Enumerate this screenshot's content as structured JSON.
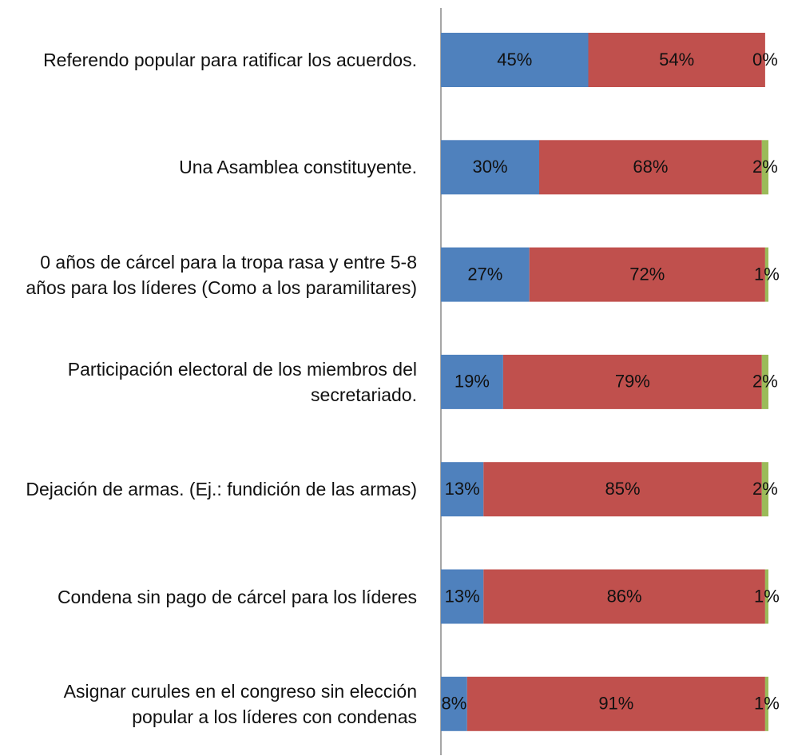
{
  "chart_data": {
    "type": "stacked-barh",
    "categories": [
      "Referendo popular para ratificar los acuerdos.",
      "Una Asamblea constituyente.",
      "0 años de cárcel para la tropa rasa y entre 5-8 años para los líderes (Como a los paramilitares)",
      "Participación electoral de los miembros del secretariado.",
      "Dejación de armas. (Ej.: fundición de las armas)",
      "Condena sin pago de cárcel para los líderes",
      "Asignar curules en el congreso sin elección popular a los líderes con condenas"
    ],
    "xlim": [
      0,
      100
    ],
    "series": [
      {
        "color": "#4f81bd",
        "values": [
          45,
          30,
          27,
          19,
          13,
          13,
          8
        ],
        "value_labels": [
          "45%",
          "30%",
          "27%",
          "19%",
          "13%",
          "13%",
          "8%"
        ]
      },
      {
        "color": "#c0504d",
        "values": [
          54,
          68,
          72,
          79,
          85,
          86,
          91
        ],
        "value_labels": [
          "54%",
          "68%",
          "72%",
          "79%",
          "85%",
          "86%",
          "91%"
        ]
      },
      {
        "color": "#9bbb59",
        "values": [
          0,
          2,
          1,
          2,
          2,
          1,
          1
        ],
        "value_labels": [
          "0%",
          "2%",
          "1%",
          "2%",
          "2%",
          "1%",
          "1%"
        ]
      }
    ]
  }
}
